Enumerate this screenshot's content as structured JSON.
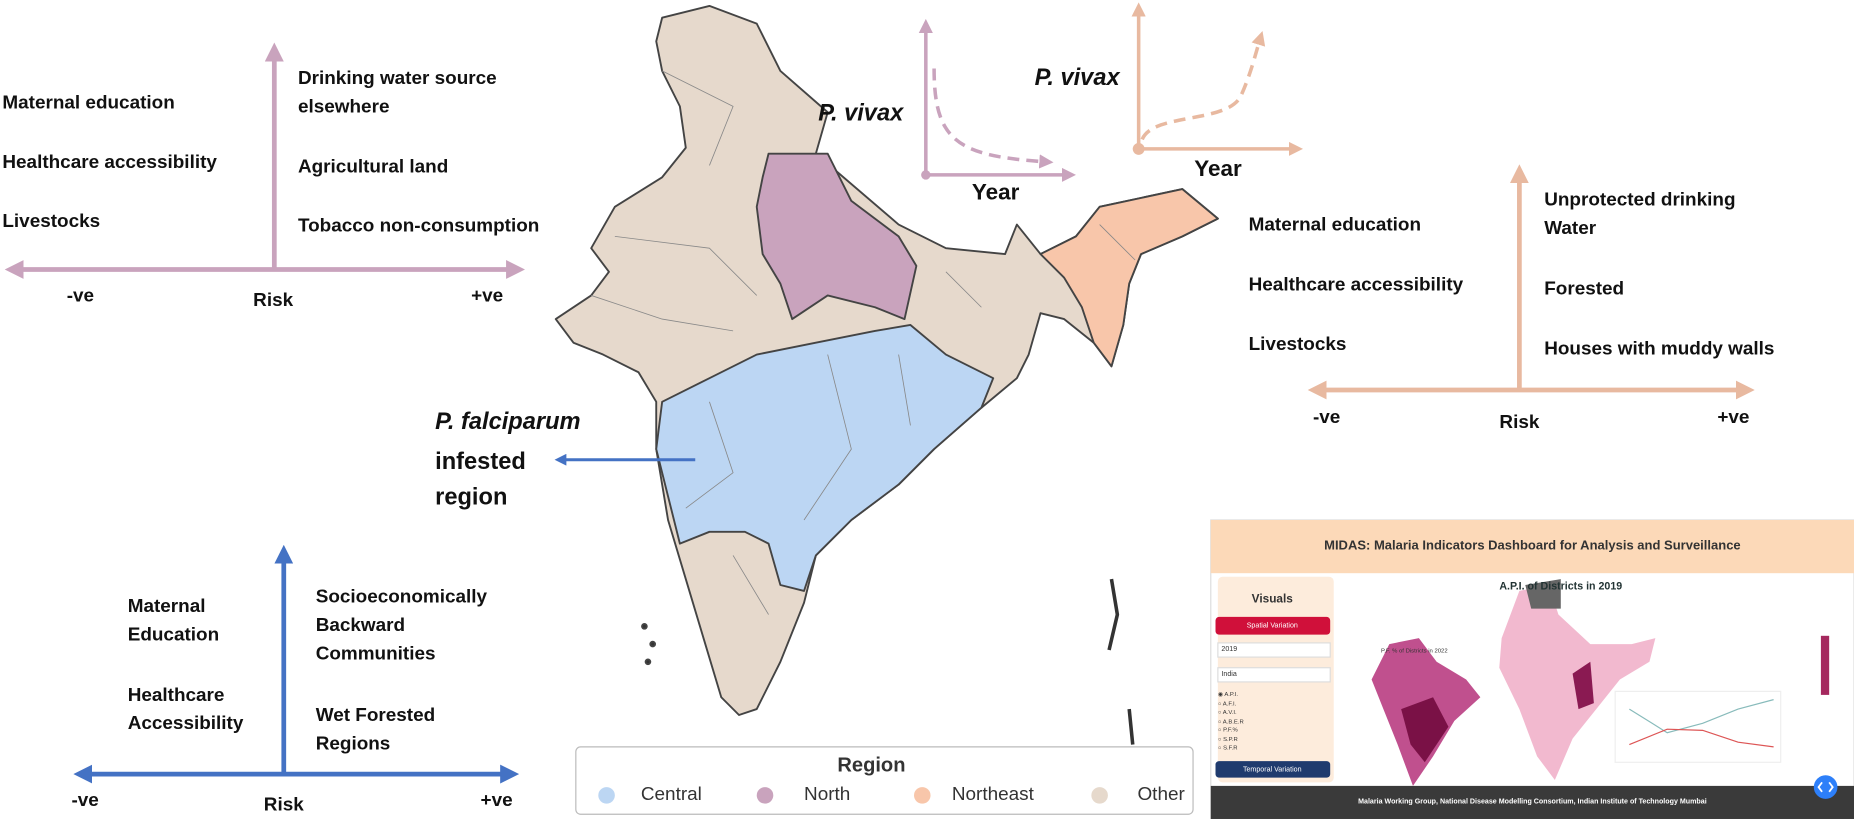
{
  "quadrants": [
    {
      "negative": [
        "Maternal education",
        "Healthcare accessibility",
        "Livestocks"
      ],
      "positive": [
        "Drinking water source\nelsewhere",
        "Agricultural land",
        "Tobacco non-consumption"
      ],
      "left": "-ve",
      "center": "Risk",
      "right": "+ve"
    },
    {
      "negative": [
        "Maternal education",
        "Healthcare accessibility",
        "Livestocks"
      ],
      "positive": [
        "Unprotected drinking\nWater",
        "Forested",
        "Houses with muddy walls"
      ],
      "left": "-ve",
      "center": "Risk",
      "right": "+ve"
    },
    {
      "negative": [
        "Maternal\nEducation",
        "Healthcare\nAccessibility"
      ],
      "positive": [
        "Socioeconomically\nBackward\nCommunities",
        "Wet Forested\nRegions"
      ],
      "left": "-ve",
      "center": "Risk",
      "right": "+ve"
    }
  ],
  "trends": [
    {
      "species": "P. vivax",
      "x_label": "Year"
    },
    {
      "species": "P. vivax",
      "x_label": "Year"
    }
  ],
  "annotation": {
    "species": "P. falciparum",
    "text": "infested\nregion"
  },
  "legend": {
    "title": "Region",
    "items": [
      {
        "name": "Central",
        "color": "#bcd6f3"
      },
      {
        "name": "North",
        "color": "#c9a3bd"
      },
      {
        "name": "Northeast",
        "color": "#f8c6aa"
      },
      {
        "name": "Other",
        "color": "#e6d9cc"
      }
    ]
  },
  "dashboard": {
    "title": "MIDAS: Malaria Indicators Dashboard for Analysis and Surveillance",
    "sidebar_heading": "Visuals",
    "spatial_button": "Spatial Variation",
    "year": "2019",
    "region": "India",
    "options": [
      "A.P.I.",
      "A.F.I.",
      "A.V.I.",
      "A.B.E.R",
      "P.F.%",
      "S.P.R",
      "S.F.R"
    ],
    "temporal_button": "Temporal Variation",
    "map_title": "A.P.I. of Districts in 2019",
    "inset_title": "P.F. % of Districts in 2022",
    "footer": "Malaria Working Group, National Disease Modelling Consortium, Indian Institute of Technology Mumbai"
  }
}
